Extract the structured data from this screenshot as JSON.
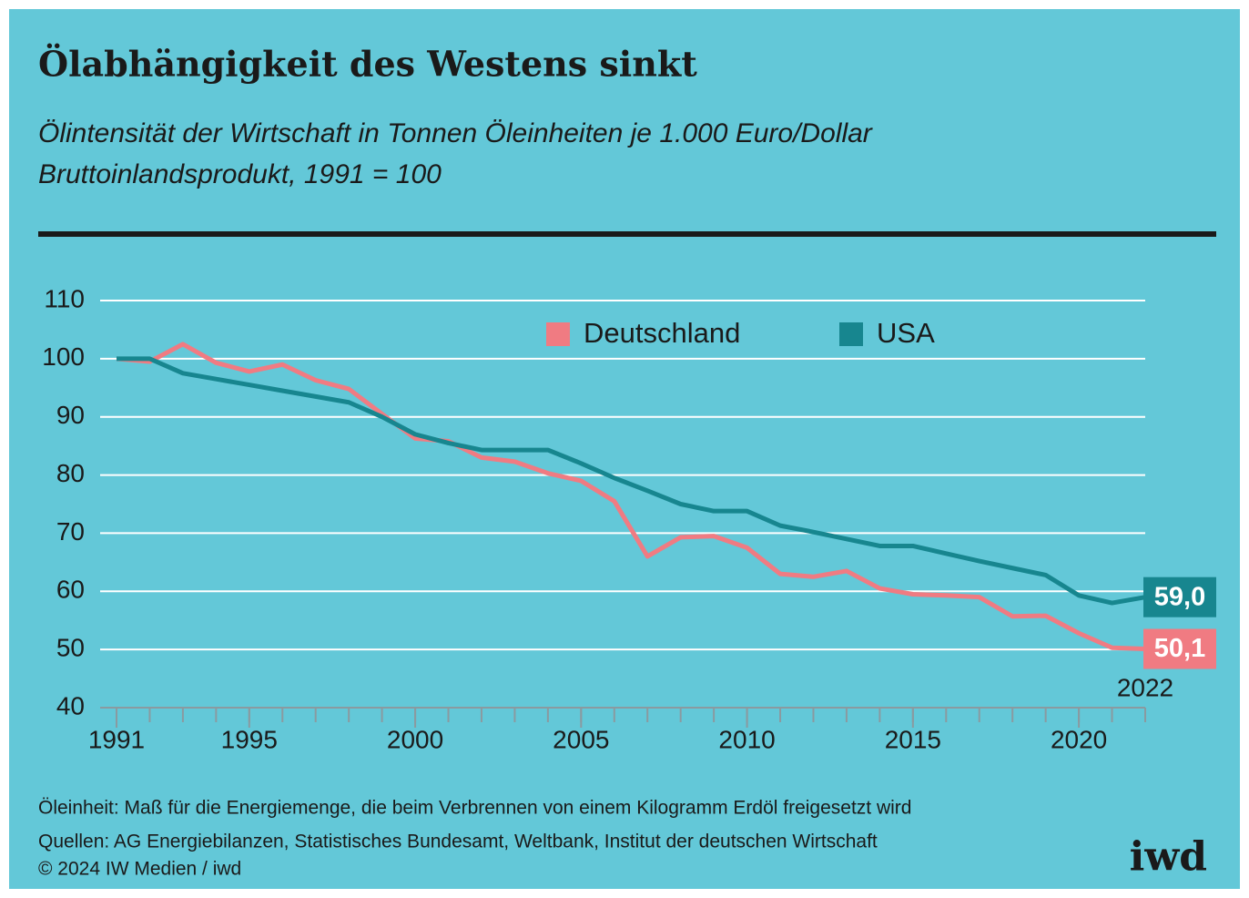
{
  "chart_data": {
    "type": "line",
    "title": "Ölabhängigkeit des Westens sinkt",
    "subtitle": [
      "Ölintensität der Wirtschaft in Tonnen Öleinheiten je 1.000 Euro/Dollar",
      "Bruttoinlandsprodukt, 1991 = 100"
    ],
    "x": [
      1991,
      1992,
      1993,
      1994,
      1995,
      1996,
      1997,
      1998,
      1999,
      2000,
      2001,
      2002,
      2003,
      2004,
      2005,
      2006,
      2007,
      2008,
      2009,
      2010,
      2011,
      2012,
      2013,
      2014,
      2015,
      2016,
      2017,
      2018,
      2019,
      2020,
      2021,
      2022
    ],
    "series": [
      {
        "name": "Deutschland",
        "color": "#f07b82",
        "values": [
          100,
          99.5,
          102.5,
          99.3,
          97.8,
          99,
          96.3,
          94.8,
          90.5,
          86.3,
          85.8,
          83,
          82.3,
          80.3,
          79,
          75.5,
          66,
          69.3,
          69.5,
          67.5,
          63,
          62.5,
          63.5,
          60.5,
          59.5,
          59.3,
          59,
          55.7,
          55.8,
          52.8,
          50.3,
          50.1
        ],
        "value_labels": [
          null,
          null,
          null,
          null,
          null,
          null,
          null,
          null,
          null,
          null,
          null,
          null,
          null,
          null,
          null,
          null,
          null,
          null,
          null,
          null,
          null,
          null,
          null,
          null,
          null,
          null,
          null,
          null,
          null,
          null,
          null,
          "50,1"
        ]
      },
      {
        "name": "USA",
        "color": "#17868f",
        "values": [
          100,
          100,
          97.5,
          96.5,
          95.5,
          94.5,
          93.5,
          92.5,
          90,
          87,
          85.5,
          84.3,
          84.3,
          84.3,
          82,
          79.5,
          77.3,
          75,
          73.8,
          73.8,
          71.3,
          70.2,
          69,
          67.8,
          67.8,
          66.5,
          65.2,
          64,
          62.8,
          59.3,
          58,
          59
        ],
        "value_labels": [
          null,
          null,
          null,
          null,
          null,
          null,
          null,
          null,
          null,
          null,
          null,
          null,
          null,
          null,
          null,
          null,
          null,
          null,
          null,
          null,
          null,
          null,
          null,
          null,
          null,
          null,
          null,
          null,
          null,
          null,
          null,
          "59,0"
        ]
      }
    ],
    "xlim": [
      1991,
      2022
    ],
    "xticks": [
      1991,
      1995,
      2000,
      2005,
      2010,
      2015,
      2020
    ],
    "annotation": 2022,
    "ylim": [
      40,
      110
    ],
    "yticks": [
      40,
      50,
      60,
      70,
      80,
      90,
      100,
      110
    ],
    "grid": true,
    "notes": [
      "Öleinheit: Maß für die Energiemenge, die beim Verbrennen von einem Kilogramm Erdöl freigesetzt wird",
      "Quellen: AG Energiebilanzen, Statistisches Bundesamt, Weltbank, Institut der deutschen Wirtschaft",
      "© 2024 IW Medien / iwd"
    ],
    "logo": "iwd"
  }
}
